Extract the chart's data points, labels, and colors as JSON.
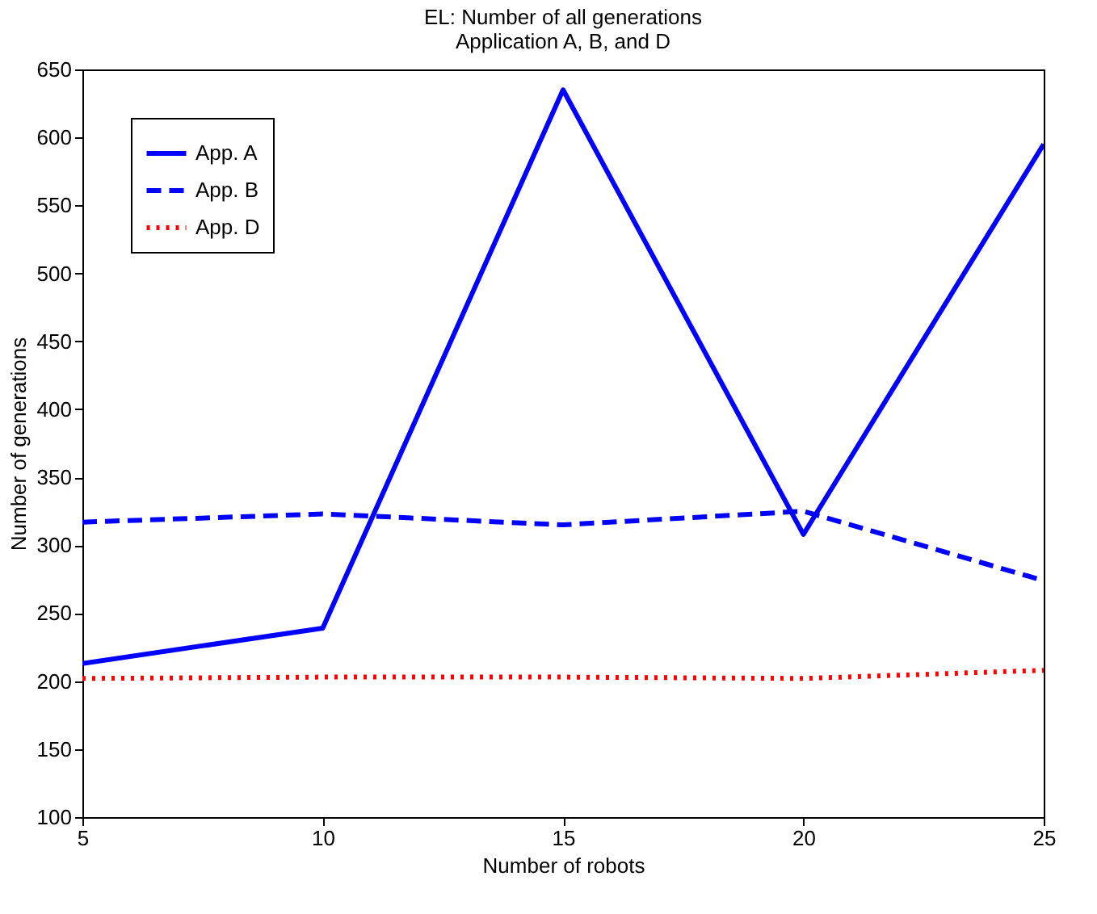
{
  "chart_data": {
    "type": "line",
    "title": "EL: Number of all generations",
    "subtitle": "Application A, B, and D",
    "xlabel": "Number of robots",
    "ylabel": "Number of generations",
    "x": [
      5,
      10,
      15,
      20,
      25
    ],
    "xlim": [
      5,
      25
    ],
    "xticks": [
      5,
      10,
      15,
      20,
      25
    ],
    "ylim": [
      100,
      650
    ],
    "yticks": [
      100,
      150,
      200,
      250,
      300,
      350,
      400,
      450,
      500,
      550,
      600,
      650
    ],
    "grid": false,
    "legend": "top left",
    "series": [
      {
        "name": "App. A",
        "color": "#0000ff",
        "line_style": "solid",
        "values": [
          213,
          239,
          635,
          308,
          595
        ]
      },
      {
        "name": "App. B",
        "color": "#0000ff",
        "line_style": "dashed",
        "values": [
          317,
          323,
          315,
          325,
          274
        ]
      },
      {
        "name": "App. D",
        "color": "#ff0000",
        "line_style": "dotted",
        "values": [
          202,
          203,
          203,
          202,
          208
        ]
      }
    ]
  }
}
